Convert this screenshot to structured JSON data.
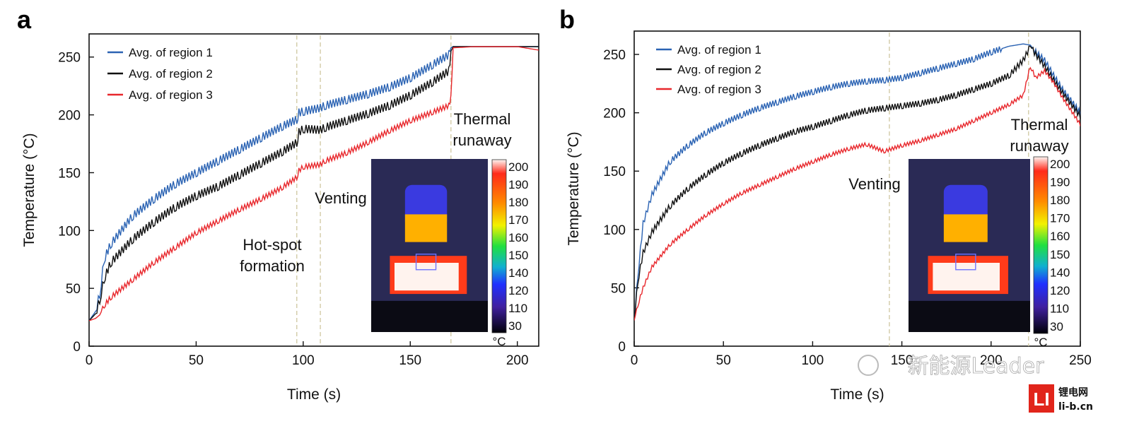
{
  "panels": [
    {
      "label": "a",
      "xlabel": "Time (s)",
      "ylabel": "Temperature (°C)",
      "xticks": [
        "0",
        "50",
        "100",
        "150",
        "200"
      ],
      "yticks": [
        "0",
        "50",
        "100",
        "150",
        "200",
        "250"
      ],
      "annotations": {
        "hotspot": [
          "Hot-spot",
          "formation"
        ],
        "venting": "Venting",
        "runaway": [
          "Thermal",
          "runaway"
        ]
      },
      "colorbar": {
        "ticks": [
          "200",
          "190",
          "180",
          "170",
          "160",
          "150",
          "140",
          "120",
          "110",
          "30"
        ],
        "unit": "°C"
      },
      "legend": [
        "Avg. of region 1",
        "Avg. of region 2",
        "Avg. of region 3"
      ]
    },
    {
      "label": "b",
      "xlabel": "Time (s)",
      "ylabel": "Temperature (°C)",
      "xticks": [
        "0",
        "50",
        "100",
        "150",
        "200",
        "250"
      ],
      "yticks": [
        "0",
        "50",
        "100",
        "150",
        "200",
        "250"
      ],
      "annotations": {
        "venting": "Venting",
        "runaway": [
          "Thermal",
          "runaway"
        ]
      },
      "colorbar": {
        "ticks": [
          "200",
          "190",
          "180",
          "170",
          "160",
          "150",
          "140",
          "120",
          "110",
          "30"
        ],
        "unit": "°C"
      },
      "legend": [
        "Avg. of region 1",
        "Avg. of region 2",
        "Avg. of region 3"
      ]
    }
  ],
  "watermark": "新能源Leader",
  "logo": {
    "mark": "LI",
    "line1": "锂电网",
    "line2": "li-b.cn"
  },
  "colors": {
    "region1": "#2b63b3",
    "region2": "#111111",
    "region3": "#e8272c",
    "guide": "#cfc7a0"
  },
  "chart_data": [
    {
      "type": "line",
      "xlabel": "Time (s)",
      "ylabel": "Temperature (°C)",
      "xlim": [
        0,
        210
      ],
      "ylim": [
        0,
        270
      ],
      "x": [
        0,
        3,
        5,
        7,
        10,
        20,
        30,
        40,
        50,
        60,
        70,
        80,
        90,
        97,
        98,
        100,
        108,
        110,
        120,
        130,
        140,
        150,
        160,
        168,
        169,
        170,
        180,
        190,
        200,
        210
      ],
      "series": [
        {
          "name": "Avg. of region 1",
          "values": [
            22,
            30,
            45,
            75,
            88,
            112,
            127,
            140,
            150,
            160,
            170,
            180,
            190,
            196,
            202,
            203,
            206,
            208,
            213,
            218,
            224,
            232,
            243,
            252,
            258,
            259,
            259,
            259,
            259,
            259
          ]
        },
        {
          "name": "Avg. of region 2",
          "values": [
            22,
            28,
            40,
            58,
            72,
            92,
            107,
            120,
            130,
            138,
            148,
            158,
            168,
            176,
            185,
            188,
            187,
            189,
            195,
            201,
            208,
            217,
            228,
            238,
            255,
            259,
            259,
            259,
            259,
            259
          ]
        },
        {
          "name": "Avg. of region 3",
          "values": [
            22,
            24,
            27,
            35,
            42,
            57,
            72,
            85,
            98,
            108,
            118,
            127,
            137,
            146,
            152,
            155,
            157,
            160,
            167,
            176,
            186,
            195,
            202,
            208,
            215,
            258,
            259,
            259,
            259,
            256
          ]
        }
      ],
      "guides_x": [
        97,
        108,
        169
      ]
    },
    {
      "type": "line",
      "xlabel": "Time (s)",
      "ylabel": "Temperature (°C)",
      "xlim": [
        0,
        250
      ],
      "ylim": [
        0,
        270
      ],
      "x": [
        0,
        2,
        5,
        10,
        20,
        30,
        40,
        50,
        60,
        70,
        80,
        90,
        100,
        110,
        120,
        130,
        140,
        150,
        160,
        170,
        180,
        190,
        200,
        210,
        218,
        222,
        225,
        230,
        235,
        240,
        250
      ],
      "series": [
        {
          "name": "Avg. of region 1",
          "values": [
            22,
            60,
            105,
            130,
            158,
            172,
            183,
            191,
            198,
            204,
            209,
            214,
            218,
            222,
            225,
            227,
            228,
            230,
            234,
            238,
            242,
            246,
            252,
            257,
            259,
            258,
            252,
            245,
            232,
            220,
            200
          ]
        },
        {
          "name": "Avg. of region 2",
          "values": [
            22,
            55,
            80,
            98,
            120,
            135,
            147,
            157,
            165,
            172,
            178,
            184,
            188,
            193,
            198,
            202,
            204,
            206,
            208,
            211,
            215,
            220,
            225,
            232,
            245,
            257,
            250,
            240,
            228,
            217,
            197
          ]
        },
        {
          "name": "Avg. of region 3",
          "values": [
            22,
            35,
            50,
            68,
            87,
            100,
            112,
            122,
            131,
            138,
            145,
            152,
            158,
            164,
            169,
            173,
            167,
            172,
            176,
            181,
            186,
            193,
            200,
            207,
            215,
            240,
            230,
            236,
            226,
            213,
            190
          ]
        }
      ],
      "guides_x": [
        143,
        221
      ]
    }
  ]
}
